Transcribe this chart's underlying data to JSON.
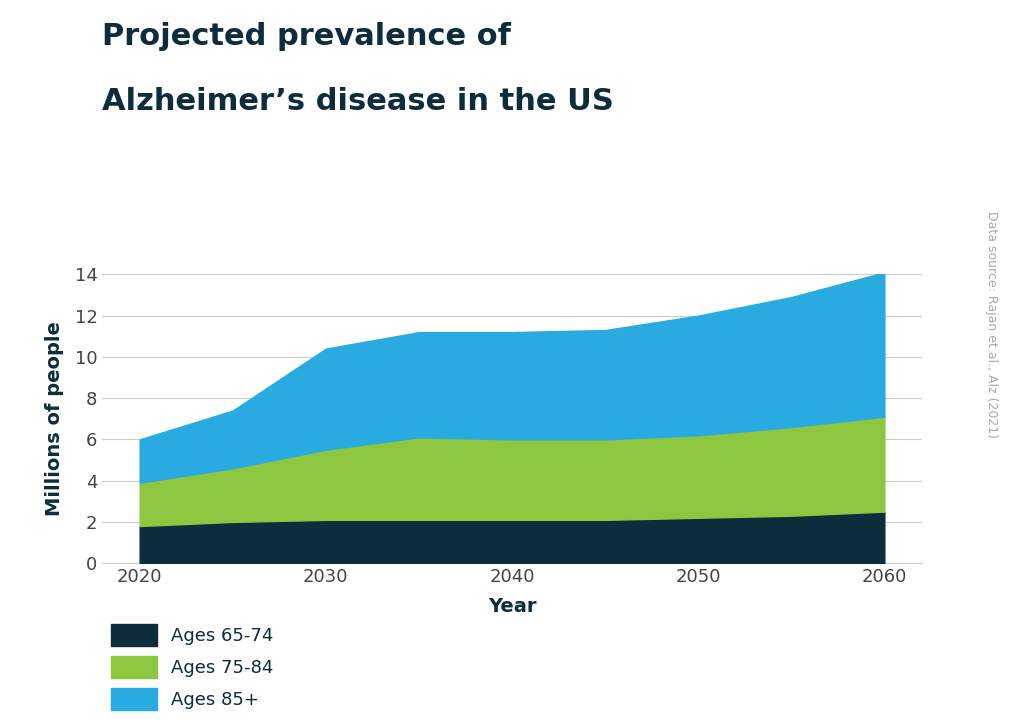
{
  "title_line1": "Projected prevalence of",
  "title_line2": "Alzheimer’s disease in the US",
  "xlabel": "Year",
  "ylabel": "Millions of people",
  "datasource": "Data source: Rajan et al., Alz (2021)",
  "years": [
    2020,
    2025,
    2030,
    2035,
    2040,
    2045,
    2050,
    2055,
    2060
  ],
  "ages_65_74": [
    1.8,
    2.0,
    2.1,
    2.1,
    2.1,
    2.1,
    2.2,
    2.3,
    2.5
  ],
  "ages_75_84": [
    2.1,
    2.6,
    3.4,
    4.0,
    3.9,
    3.9,
    4.0,
    4.3,
    4.6
  ],
  "ages_85plus": [
    2.1,
    2.8,
    4.9,
    5.1,
    5.2,
    5.3,
    5.8,
    6.3,
    7.0
  ],
  "color_65_74": "#0d2d3d",
  "color_75_84": "#8dc63f",
  "color_85plus": "#29abe2",
  "background_color": "#ffffff",
  "title_color": "#0d2d3d",
  "axis_label_color": "#0d2d3d",
  "tick_color": "#444444",
  "grid_color": "#cccccc",
  "ylim": [
    0,
    14
  ],
  "yticks": [
    0,
    2,
    4,
    6,
    8,
    10,
    12,
    14
  ],
  "xticks": [
    2020,
    2030,
    2040,
    2050,
    2060
  ],
  "legend_labels": [
    "Ages 65-74",
    "Ages 75-84",
    "Ages 85+"
  ],
  "title_fontsize": 22,
  "label_fontsize": 14,
  "tick_fontsize": 13,
  "legend_fontsize": 13
}
